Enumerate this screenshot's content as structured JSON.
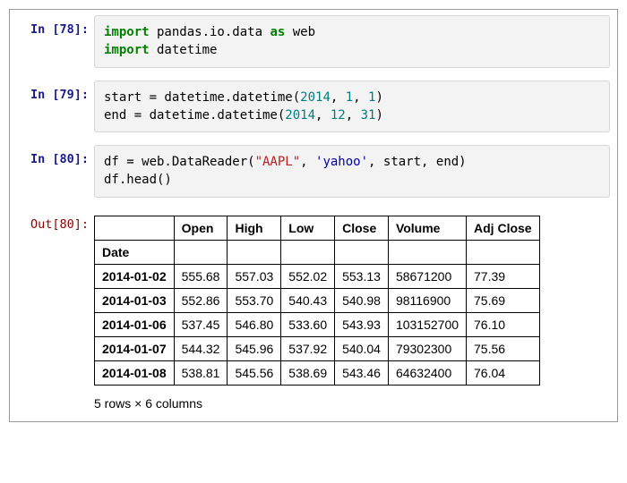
{
  "cells": {
    "c0": {
      "prompt": "In [78]:"
    },
    "c1": {
      "prompt": "In [79]:"
    },
    "c2": {
      "prompt": "In [80]:"
    },
    "c3": {
      "prompt": "Out[80]:"
    }
  },
  "code0": {
    "kw_import_a": "import",
    "mod_a": " pandas.io.data ",
    "kw_as": "as",
    "alias": " web",
    "kw_import_b": "import",
    "mod_b": " datetime"
  },
  "code1": {
    "line1a": "start = datetime.datetime(",
    "n1": "2014",
    "c1": ", ",
    "n2": "1",
    "c2": ", ",
    "n3": "1",
    "line1b": ")",
    "line2a": "end = datetime.datetime(",
    "n4": "2014",
    "c3": ", ",
    "n5": "12",
    "c4": ", ",
    "n6": "31",
    "line2b": ")"
  },
  "code2": {
    "line1a": "df = web.DataReader(",
    "s1": "\"AAPL\"",
    "c1": ", ",
    "s2": "'yahoo'",
    "c2": ", start, end)",
    "line2": "df.head()"
  },
  "table": {
    "index_name": "Date",
    "columns": [
      "Open",
      "High",
      "Low",
      "Close",
      "Volume",
      "Adj Close"
    ],
    "rows": [
      {
        "idx": "2014-01-02",
        "Open": "555.68",
        "High": "557.03",
        "Low": "552.02",
        "Close": "553.13",
        "Volume": "58671200",
        "Adj": "77.39"
      },
      {
        "idx": "2014-01-03",
        "Open": "552.86",
        "High": "553.70",
        "Low": "540.43",
        "Close": "540.98",
        "Volume": "98116900",
        "Adj": "75.69"
      },
      {
        "idx": "2014-01-06",
        "Open": "537.45",
        "High": "546.80",
        "Low": "533.60",
        "Close": "543.93",
        "Volume": "103152700",
        "Adj": "76.10"
      },
      {
        "idx": "2014-01-07",
        "Open": "544.32",
        "High": "545.96",
        "Low": "537.92",
        "Close": "540.04",
        "Volume": "79302300",
        "Adj": "75.56"
      },
      {
        "idx": "2014-01-08",
        "Open": "538.81",
        "High": "545.56",
        "Low": "538.69",
        "Close": "543.46",
        "Volume": "64632400",
        "Adj": "76.04"
      }
    ],
    "summary": "5 rows × 6 columns"
  },
  "style": {
    "kw_color": "#008000",
    "str_color": "#b22222",
    "str2_color": "#0000aa",
    "num_color": "#007c7c",
    "in_prompt_color": "#1a1a8a",
    "out_prompt_color": "#8b0000",
    "input_bg": "#f3f3f3",
    "border_color": "#000000",
    "body_bg": "#ffffff"
  }
}
